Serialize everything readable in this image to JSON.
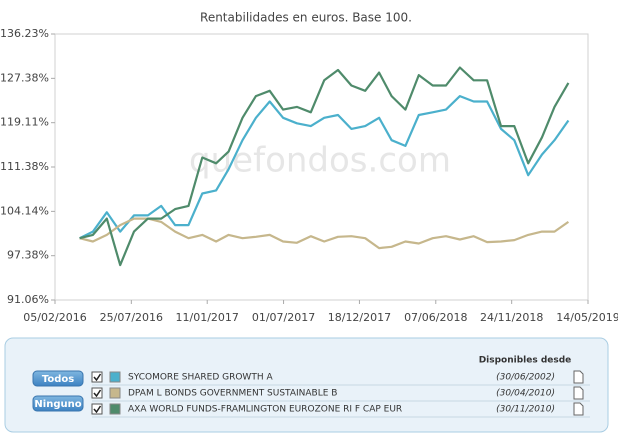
{
  "chart_data": {
    "type": "line",
    "title": "Rentabilidades en euros. Base 100.",
    "watermark": "quefondos.com",
    "log_scale": true,
    "x": [
      "2016-03-31",
      "2016-04-30",
      "2016-05-31",
      "2016-06-30",
      "2016-07-31",
      "2016-08-31",
      "2016-09-30",
      "2016-10-31",
      "2016-11-30",
      "2016-12-31",
      "2017-01-31",
      "2017-02-28",
      "2017-03-31",
      "2017-04-30",
      "2017-05-31",
      "2017-06-30",
      "2017-07-31",
      "2017-08-31",
      "2017-09-30",
      "2017-10-31",
      "2017-11-30",
      "2017-12-31",
      "2018-01-31",
      "2018-02-28",
      "2018-03-31",
      "2018-04-30",
      "2018-05-31",
      "2018-06-30",
      "2018-07-31",
      "2018-08-31",
      "2018-09-30",
      "2018-10-31",
      "2018-11-30",
      "2018-12-31",
      "2019-01-31",
      "2019-02-28",
      "2019-03-31"
    ],
    "xlim": [
      "2016-02-05",
      "2019-05-14"
    ],
    "xticks": [
      {
        "value": "2016-02-05",
        "label": "05/02/2016"
      },
      {
        "value": "2016-07-25",
        "label": "25/07/2016"
      },
      {
        "value": "2017-01-11",
        "label": "11/01/2017"
      },
      {
        "value": "2017-07-01",
        "label": "01/07/2017"
      },
      {
        "value": "2017-12-18",
        "label": "18/12/2017"
      },
      {
        "value": "2018-06-07",
        "label": "07/06/2018"
      },
      {
        "value": "2018-11-24",
        "label": "24/11/2018"
      },
      {
        "value": "2019-05-14",
        "label": "14/05/2019"
      }
    ],
    "ylim": [
      91.06,
      136.23
    ],
    "yticks": [
      {
        "value": 91.06,
        "label": "91.06%"
      },
      {
        "value": 97.38,
        "label": "97.38%"
      },
      {
        "value": 104.14,
        "label": "104.14%"
      },
      {
        "value": 111.38,
        "label": "111.38%"
      },
      {
        "value": 119.11,
        "label": "119.11%"
      },
      {
        "value": 127.38,
        "label": "127.38%"
      },
      {
        "value": 136.23,
        "label": "136.23%"
      }
    ],
    "series": [
      {
        "name": "SYCOMORE SHARED GROWTH A",
        "color": "#4bb0cc",
        "available_since": "(30/06/2002)",
        "values": [
          100,
          101,
          104,
          101,
          103.5,
          103.5,
          105,
          102,
          102,
          107,
          107.5,
          111,
          116,
          120,
          123,
          120,
          119,
          118.5,
          120,
          120.5,
          118,
          118.5,
          120,
          116,
          115,
          120.5,
          121,
          121.5,
          124,
          123,
          123,
          118,
          116,
          110,
          113.5,
          116,
          119.5
        ]
      },
      {
        "name": "DPAM L BONDS GOVERNMENT SUSTAINABLE B",
        "color": "#c6b78c",
        "available_since": "(30/04/2010)",
        "values": [
          100,
          99.5,
          100.5,
          102,
          103,
          103,
          102.5,
          101,
          100,
          100.5,
          99.5,
          100.5,
          100,
          100.2,
          100.5,
          99.5,
          99.3,
          100.3,
          99.5,
          100.2,
          100.3,
          100,
          98.5,
          98.7,
          99.5,
          99.2,
          100,
          100.3,
          99.8,
          100.3,
          99.4,
          99.5,
          99.7,
          100.5,
          101,
          101,
          102.5
        ]
      },
      {
        "name": "AXA WORLD FUNDS-FRAMLINGTON EUROZONE RI F CAP EUR",
        "color": "#4f8b6b",
        "available_since": "(30/11/2010)",
        "values": [
          100,
          100.5,
          103,
          96,
          101,
          103,
          103,
          104.5,
          105,
          113,
          112,
          114,
          120,
          124,
          125,
          121.5,
          122,
          121,
          127,
          129,
          126,
          125,
          128.5,
          124,
          121.5,
          128,
          126,
          126,
          129.5,
          127,
          127,
          118.5,
          118.5,
          112,
          116.5,
          122,
          126.5
        ]
      }
    ],
    "legend": {
      "header": "Disponibles desde",
      "buttons": [
        "Todos",
        "Ninguno"
      ]
    }
  }
}
